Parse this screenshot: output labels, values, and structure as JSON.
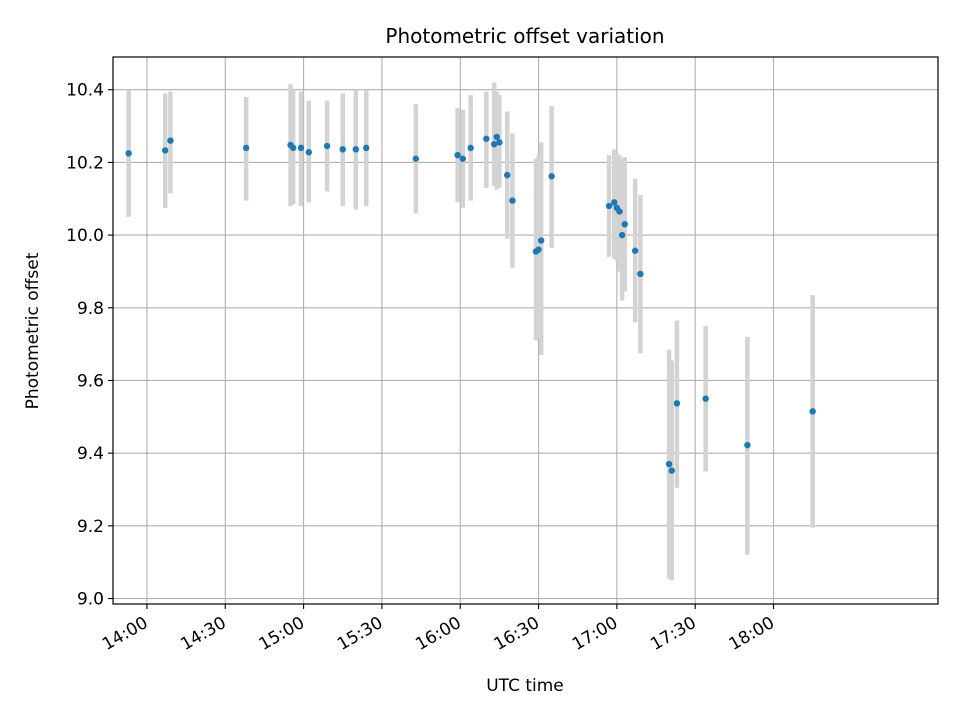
{
  "chart_data": {
    "type": "scatter",
    "title": "Photometric offset variation",
    "xlabel": "UTC time",
    "ylabel": "Photometric offset",
    "x_axis_type": "time",
    "xlim": [
      "13:47",
      "19:03"
    ],
    "ylim": [
      8.985,
      10.49
    ],
    "x_ticks": [
      "14:00",
      "14:30",
      "15:00",
      "15:30",
      "16:00",
      "16:30",
      "17:00",
      "17:30",
      "18:00"
    ],
    "y_ticks": [
      "9.0",
      "9.2",
      "9.4",
      "9.6",
      "9.8",
      "10.0",
      "10.2",
      "10.4"
    ],
    "grid": true,
    "colors": {
      "point": "#1f77b4",
      "error_bar": "#d3d3d3",
      "grid": "#b0b0b0"
    },
    "series": [
      {
        "points": [
          {
            "time": "13:53",
            "y": 10.225,
            "lo": 10.05,
            "hi": 10.4
          },
          {
            "time": "14:07",
            "y": 10.233,
            "lo": 10.075,
            "hi": 10.39
          },
          {
            "time": "14:09",
            "y": 10.26,
            "lo": 10.115,
            "hi": 10.395
          },
          {
            "time": "14:38",
            "y": 10.24,
            "lo": 10.095,
            "hi": 10.38
          },
          {
            "time": "14:55",
            "y": 10.248,
            "lo": 10.08,
            "hi": 10.415
          },
          {
            "time": "14:56",
            "y": 10.24,
            "lo": 10.085,
            "hi": 10.4
          },
          {
            "time": "14:59",
            "y": 10.24,
            "lo": 10.08,
            "hi": 10.395
          },
          {
            "time": "15:02",
            "y": 10.228,
            "lo": 10.09,
            "hi": 10.37
          },
          {
            "time": "15:09",
            "y": 10.245,
            "lo": 10.12,
            "hi": 10.37
          },
          {
            "time": "15:15",
            "y": 10.236,
            "lo": 10.08,
            "hi": 10.39
          },
          {
            "time": "15:20",
            "y": 10.236,
            "lo": 10.07,
            "hi": 10.4
          },
          {
            "time": "15:24",
            "y": 10.24,
            "lo": 10.08,
            "hi": 10.4
          },
          {
            "time": "15:43",
            "y": 10.21,
            "lo": 10.06,
            "hi": 10.36
          },
          {
            "time": "15:59",
            "y": 10.22,
            "lo": 10.09,
            "hi": 10.35
          },
          {
            "time": "16:01",
            "y": 10.21,
            "lo": 10.075,
            "hi": 10.345
          },
          {
            "time": "16:04",
            "y": 10.24,
            "lo": 10.095,
            "hi": 10.385
          },
          {
            "time": "16:10",
            "y": 10.265,
            "lo": 10.13,
            "hi": 10.395
          },
          {
            "time": "16:13",
            "y": 10.25,
            "lo": 10.135,
            "hi": 10.42
          },
          {
            "time": "16:14",
            "y": 10.27,
            "lo": 10.125,
            "hi": 10.395
          },
          {
            "time": "16:15",
            "y": 10.255,
            "lo": 10.13,
            "hi": 10.385
          },
          {
            "time": "16:18",
            "y": 10.165,
            "lo": 9.99,
            "hi": 10.34
          },
          {
            "time": "16:20",
            "y": 10.095,
            "lo": 9.91,
            "hi": 10.28
          },
          {
            "time": "16:29",
            "y": 9.955,
            "lo": 9.71,
            "hi": 10.21
          },
          {
            "time": "16:30",
            "y": 9.96,
            "lo": 9.715,
            "hi": 10.22
          },
          {
            "time": "16:31",
            "y": 9.985,
            "lo": 9.67,
            "hi": 10.255
          },
          {
            "time": "16:35",
            "y": 10.162,
            "lo": 9.965,
            "hi": 10.355
          },
          {
            "time": "16:57",
            "y": 10.08,
            "lo": 9.94,
            "hi": 10.22
          },
          {
            "time": "16:59",
            "y": 10.09,
            "lo": 9.935,
            "hi": 10.235
          },
          {
            "time": "17:00",
            "y": 10.075,
            "lo": 9.93,
            "hi": 10.225
          },
          {
            "time": "17:01",
            "y": 10.065,
            "lo": 9.9,
            "hi": 10.22
          },
          {
            "time": "17:02",
            "y": 10.0,
            "lo": 9.82,
            "hi": 10.21
          },
          {
            "time": "17:03",
            "y": 10.03,
            "lo": 9.845,
            "hi": 10.215
          },
          {
            "time": "17:07",
            "y": 9.957,
            "lo": 9.76,
            "hi": 10.155
          },
          {
            "time": "17:09",
            "y": 9.893,
            "lo": 9.675,
            "hi": 10.11
          },
          {
            "time": "17:20",
            "y": 9.37,
            "lo": 9.055,
            "hi": 9.685
          },
          {
            "time": "17:21",
            "y": 9.352,
            "lo": 9.05,
            "hi": 9.655
          },
          {
            "time": "17:23",
            "y": 9.537,
            "lo": 9.305,
            "hi": 9.765
          },
          {
            "time": "17:34",
            "y": 9.55,
            "lo": 9.35,
            "hi": 9.75
          },
          {
            "time": "17:50",
            "y": 9.422,
            "lo": 9.12,
            "hi": 9.72
          },
          {
            "time": "18:15",
            "y": 9.515,
            "lo": 9.195,
            "hi": 9.835
          }
        ]
      }
    ]
  }
}
